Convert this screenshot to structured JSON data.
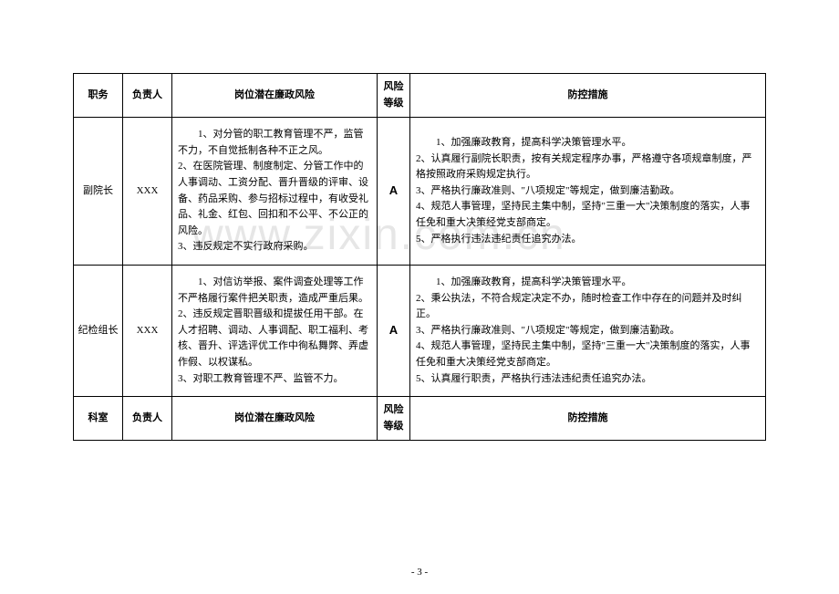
{
  "watermark": "www.zixin.com.cn",
  "page_number": "- 3 -",
  "header1": {
    "post": "职务",
    "person": "负责人",
    "risk": "岗位潜在廉政风险",
    "level": "风险\n等级",
    "measure": "防控措施"
  },
  "header2": {
    "dept": "科室",
    "person": "负责人",
    "risk": "岗位潜在廉政风险",
    "level": "风险\n等级",
    "measure": "防控措施"
  },
  "rows": [
    {
      "post": "副院长",
      "person": "XXX",
      "risk": "1、对分管的职工教育管理不严，监管不力，不自觉抵制各种不正之风。\n2、在医院管理、制度制定、分管工作中的人事调动、工资分配、晋升晋级的评审、设备、药品采购、参与招标过程中，有收受礼品、礼金、红包、回扣和不公平、不公正的风险。\n3、违反规定不实行政府采购。",
      "level": "A",
      "measure": "1、加强廉政教育，提高科学决策管理水平。\n2、认真履行副院长职责，按有关规定程序办事，严格遵守各项规章制度，严格按照政府采购规定执行。\n3、严格执行廉政准则、\"八项规定\"等规定，做到廉洁勤政。\n4、规范人事管理，坚持民主集中制，坚持\"三重一大\"决策制度的落实，人事任免和重大决策经党支部商定。\n5、严格执行违法违纪责任追究办法。"
    },
    {
      "post": "纪检组长",
      "person": "XXX",
      "risk": "1、对信访举报、案件调查处理等工作不严格履行案件把关职责，造成严重后果。\n2、违反规定晋职晋级和提拔任用干部。在人才招聘、调动、人事调配、职工福利、考核、晋升、评选评优工作中徇私舞弊、弄虚作假、以权谋私。\n3、对职工教育管理不严、监管不力。",
      "level": "A",
      "measure": "1、加强廉政教育，提高科学决策管理水平。\n2、秉公执法，不符合规定决定不办，随时检查工作中存在的问题并及时纠正。\n3、严格执行廉政准则、\"八项规定\"等规定，做到廉洁勤政。\n4、规范人事管理，坚持民主集中制，坚持\"三重一大\"决策制度的落实，人事任免和重大决策经党支部商定。\n5、认真履行职责，严格执行违法违纪责任追究办法。"
    }
  ],
  "style": {
    "background": "#ffffff",
    "border_color": "#000000",
    "text_color": "#000000",
    "watermark_color": "#e6e6e6",
    "font_body": 11,
    "font_level": 13,
    "font_watermark": 48
  }
}
